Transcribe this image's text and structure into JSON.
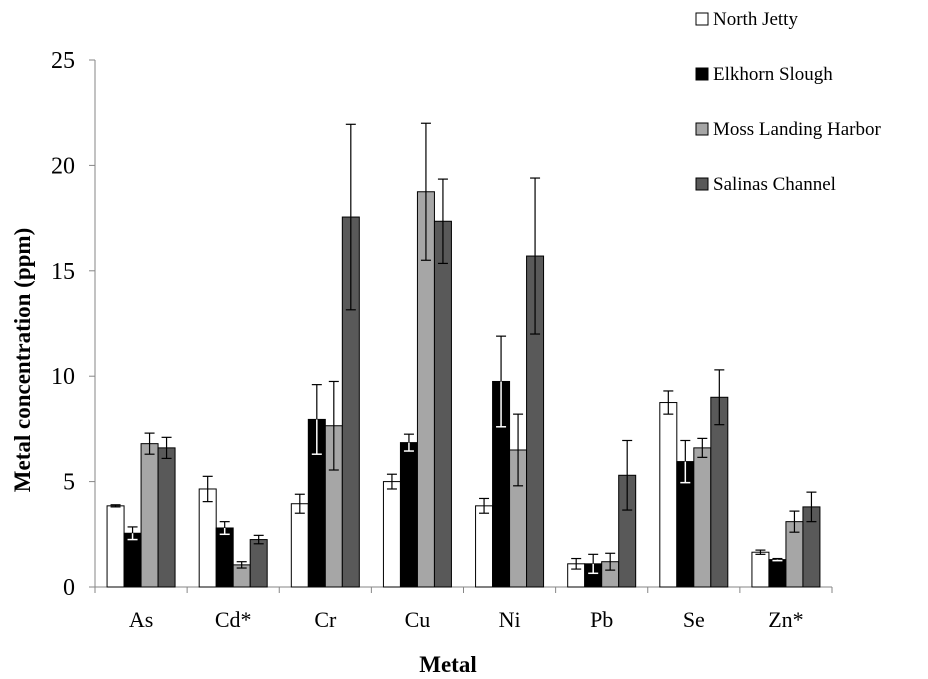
{
  "chart_data": {
    "type": "bar",
    "xlabel": "Metal",
    "ylabel": "Metal concentration (ppm)",
    "ylim": [
      0,
      25
    ],
    "yticks": [
      0,
      5,
      10,
      15,
      20,
      25
    ],
    "categories": [
      "As",
      "Cd*",
      "Cr",
      "Cu",
      "Ni",
      "Pb",
      "Se",
      "Zn*"
    ],
    "legend_position": "top-right",
    "grid": false,
    "series": [
      {
        "name": "North Jetty",
        "color": "#ffffff",
        "values": [
          3.85,
          4.65,
          3.95,
          5.0,
          3.85,
          1.1,
          8.75,
          1.65
        ],
        "errors": [
          0.05,
          0.6,
          0.45,
          0.35,
          0.35,
          0.25,
          0.55,
          0.1
        ]
      },
      {
        "name": "Elkhorn Slough",
        "color": "#000000",
        "values": [
          2.55,
          2.8,
          7.95,
          6.85,
          9.75,
          1.1,
          5.95,
          1.3
        ],
        "errors": [
          0.3,
          0.3,
          1.65,
          0.4,
          2.15,
          0.45,
          1.0,
          0.05
        ]
      },
      {
        "name": "Moss Landing Harbor",
        "color": "#a6a6a6",
        "values": [
          6.8,
          1.05,
          7.65,
          18.75,
          6.5,
          1.2,
          6.6,
          3.1
        ],
        "errors": [
          0.5,
          0.15,
          2.1,
          3.25,
          1.7,
          0.4,
          0.45,
          0.5
        ]
      },
      {
        "name": "Salinas Channel",
        "color": "#595959",
        "values": [
          6.6,
          2.25,
          17.55,
          17.35,
          15.7,
          5.3,
          9.0,
          3.8
        ],
        "errors": [
          0.5,
          0.2,
          4.4,
          2.0,
          3.7,
          1.65,
          1.3,
          0.7
        ]
      }
    ]
  }
}
